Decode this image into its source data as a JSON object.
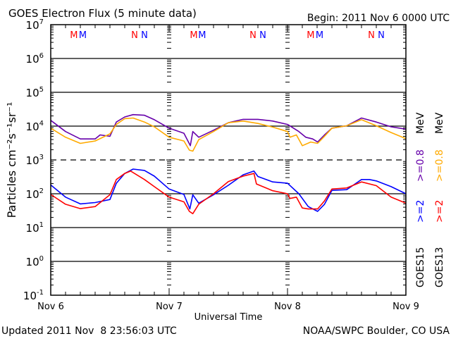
{
  "chart_data": {
    "type": "line",
    "title": "GOES Electron Flux (5 minute data)",
    "begin_label": "Begin: 2011 Nov 6 0000 UTC",
    "xlabel": "Universal Time",
    "ylabel": "Particles cm⁻²s⁻¹sr⁻¹",
    "y_scale": "log",
    "ylim_log10": [
      -1,
      7
    ],
    "xlim_hours": [
      0,
      72
    ],
    "x_ticks": [
      {
        "label": "Nov 6",
        "hour": 0
      },
      {
        "label": "Nov 7",
        "hour": 24
      },
      {
        "label": "Nov 8",
        "hour": 48
      },
      {
        "label": "Nov 9",
        "hour": 72
      }
    ],
    "y_ticks": [
      {
        "base": "10",
        "exp": "7",
        "log": 7
      },
      {
        "base": "10",
        "exp": "6",
        "log": 6
      },
      {
        "base": "10",
        "exp": "5",
        "log": 5
      },
      {
        "base": "10",
        "exp": "4",
        "log": 4
      },
      {
        "base": "10",
        "exp": "3",
        "log": 3
      },
      {
        "base": "10",
        "exp": "2",
        "log": 2
      },
      {
        "base": "10",
        "exp": "1",
        "log": 1
      },
      {
        "base": "10",
        "exp": "0",
        "log": 0
      },
      {
        "base": "10",
        "exp": "-1",
        "log": -1
      }
    ],
    "threshold_log10": 3,
    "markers": [
      {
        "text": "M",
        "hour": 4.7,
        "color": "#ff0000"
      },
      {
        "text": "M",
        "hour": 6.5,
        "color": "#0000ff"
      },
      {
        "text": "N",
        "hour": 17.0,
        "color": "#ff0000"
      },
      {
        "text": "N",
        "hour": 19.0,
        "color": "#0000ff"
      },
      {
        "text": "M",
        "hour": 29.0,
        "color": "#ff0000"
      },
      {
        "text": "M",
        "hour": 30.7,
        "color": "#0000ff"
      },
      {
        "text": "N",
        "hour": 41.0,
        "color": "#ff0000"
      },
      {
        "text": "N",
        "hour": 43.0,
        "color": "#0000ff"
      },
      {
        "text": "M",
        "hour": 52.7,
        "color": "#ff0000"
      },
      {
        "text": "M",
        "hour": 54.5,
        "color": "#0000ff"
      },
      {
        "text": "N",
        "hour": 65.0,
        "color": "#ff0000"
      },
      {
        "text": "N",
        "hour": 67.0,
        "color": "#0000ff"
      }
    ],
    "legend": {
      "goes15": {
        "sat": "GOES15",
        "e2": ">=2",
        "e08": ">=0.8",
        "unit": "MeV"
      },
      "goes13": {
        "sat": "GOES13",
        "e2": ">=2",
        "e08": ">=0.8",
        "unit": "MeV"
      }
    },
    "series": [
      {
        "name": "GOES15 >=0.8 MeV",
        "color": "#6600aa",
        "points_hour_log10": [
          [
            0,
            4.17
          ],
          [
            3,
            3.84
          ],
          [
            6,
            3.62
          ],
          [
            9,
            3.62
          ],
          [
            10,
            3.74
          ],
          [
            12,
            3.7
          ],
          [
            13.3,
            4.12
          ],
          [
            15,
            4.27
          ],
          [
            16.7,
            4.34
          ],
          [
            19,
            4.32
          ],
          [
            21,
            4.19
          ],
          [
            24,
            3.94
          ],
          [
            27,
            3.79
          ],
          [
            28.3,
            3.42
          ],
          [
            28.8,
            3.84
          ],
          [
            30,
            3.67
          ],
          [
            33,
            3.88
          ],
          [
            36,
            4.1
          ],
          [
            39,
            4.2
          ],
          [
            42,
            4.2
          ],
          [
            45,
            4.15
          ],
          [
            48,
            4.05
          ],
          [
            50.3,
            3.84
          ],
          [
            51.7,
            3.67
          ],
          [
            53.1,
            3.62
          ],
          [
            54.1,
            3.53
          ],
          [
            55.5,
            3.74
          ],
          [
            57,
            3.94
          ],
          [
            60,
            4.01
          ],
          [
            63,
            4.24
          ],
          [
            66,
            4.12
          ],
          [
            69,
            3.98
          ],
          [
            72,
            3.91
          ]
        ]
      },
      {
        "name": "GOES13 >=0.8 MeV",
        "color": "#ffaa00",
        "points_hour_log10": [
          [
            0,
            3.94
          ],
          [
            3,
            3.67
          ],
          [
            6,
            3.49
          ],
          [
            9,
            3.56
          ],
          [
            12,
            3.77
          ],
          [
            13.3,
            4.05
          ],
          [
            15,
            4.22
          ],
          [
            16.7,
            4.24
          ],
          [
            19,
            4.12
          ],
          [
            21,
            3.98
          ],
          [
            24,
            3.67
          ],
          [
            27,
            3.56
          ],
          [
            28.1,
            3.29
          ],
          [
            28.8,
            3.26
          ],
          [
            30,
            3.6
          ],
          [
            33,
            3.84
          ],
          [
            36,
            4.1
          ],
          [
            39,
            4.15
          ],
          [
            42,
            4.08
          ],
          [
            45,
            3.97
          ],
          [
            48,
            3.84
          ],
          [
            48.5,
            3.67
          ],
          [
            49.8,
            3.74
          ],
          [
            51,
            3.42
          ],
          [
            52.7,
            3.53
          ],
          [
            54.1,
            3.49
          ],
          [
            55.5,
            3.7
          ],
          [
            57,
            3.94
          ],
          [
            60,
            4.01
          ],
          [
            63,
            4.19
          ],
          [
            66,
            4.01
          ],
          [
            69,
            3.81
          ],
          [
            72,
            3.63
          ]
        ]
      },
      {
        "name": "GOES15 >=2 MeV",
        "color": "#0000ff",
        "points_hour_log10": [
          [
            0,
            2.26
          ],
          [
            3,
            1.9
          ],
          [
            6,
            1.7
          ],
          [
            9,
            1.74
          ],
          [
            12,
            1.83
          ],
          [
            13.3,
            2.31
          ],
          [
            15,
            2.6
          ],
          [
            16.7,
            2.73
          ],
          [
            19,
            2.69
          ],
          [
            21,
            2.52
          ],
          [
            24,
            2.14
          ],
          [
            27,
            1.98
          ],
          [
            28.2,
            1.55
          ],
          [
            28.8,
            1.97
          ],
          [
            30,
            1.72
          ],
          [
            33,
            1.97
          ],
          [
            36,
            2.25
          ],
          [
            39,
            2.56
          ],
          [
            41.2,
            2.67
          ],
          [
            42,
            2.51
          ],
          [
            45,
            2.35
          ],
          [
            48,
            2.31
          ],
          [
            50.3,
            2.0
          ],
          [
            52.2,
            1.62
          ],
          [
            54.1,
            1.48
          ],
          [
            55.5,
            1.69
          ],
          [
            57,
            2.1
          ],
          [
            60,
            2.12
          ],
          [
            63,
            2.42
          ],
          [
            64.6,
            2.42
          ],
          [
            66,
            2.38
          ],
          [
            69,
            2.21
          ],
          [
            72,
            2.0
          ]
        ]
      },
      {
        "name": "GOES13 >=2 MeV",
        "color": "#ff0000",
        "points_hour_log10": [
          [
            0,
            1.98
          ],
          [
            3,
            1.69
          ],
          [
            6,
            1.56
          ],
          [
            9,
            1.62
          ],
          [
            12,
            1.97
          ],
          [
            13.3,
            2.42
          ],
          [
            15,
            2.6
          ],
          [
            16.2,
            2.67
          ],
          [
            19,
            2.42
          ],
          [
            21,
            2.21
          ],
          [
            24,
            1.9
          ],
          [
            27,
            1.76
          ],
          [
            28.1,
            1.48
          ],
          [
            28.8,
            1.41
          ],
          [
            30,
            1.69
          ],
          [
            33,
            2.0
          ],
          [
            36,
            2.36
          ],
          [
            39,
            2.52
          ],
          [
            41.2,
            2.6
          ],
          [
            41.7,
            2.29
          ],
          [
            45,
            2.09
          ],
          [
            48,
            2.0
          ],
          [
            48.5,
            1.86
          ],
          [
            49.8,
            1.9
          ],
          [
            51,
            1.58
          ],
          [
            52.2,
            1.55
          ],
          [
            54.1,
            1.55
          ],
          [
            55.5,
            1.79
          ],
          [
            57,
            2.14
          ],
          [
            60,
            2.17
          ],
          [
            63,
            2.35
          ],
          [
            66,
            2.24
          ],
          [
            69,
            1.9
          ],
          [
            72,
            1.72
          ]
        ]
      }
    ]
  },
  "footer": {
    "updated": "Updated 2011 Nov  8 23:56:03 UTC",
    "source": "NOAA/SWPC Boulder, CO USA"
  }
}
